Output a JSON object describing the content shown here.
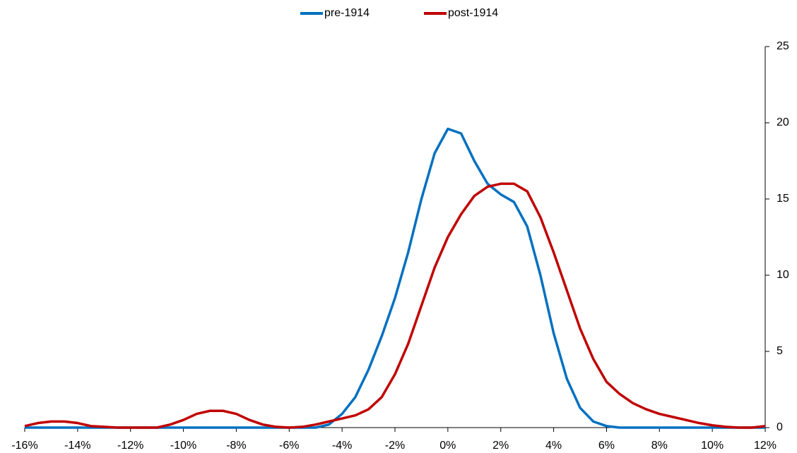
{
  "chart_data": {
    "type": "line",
    "x": [
      -16,
      -15.5,
      -15,
      -14.5,
      -14,
      -13.5,
      -13,
      -12.5,
      -12,
      -11.5,
      -11,
      -10.5,
      -10,
      -9.5,
      -9,
      -8.5,
      -8,
      -7.5,
      -7,
      -6.5,
      -6,
      -5.5,
      -5,
      -4.5,
      -4,
      -3.5,
      -3,
      -2.5,
      -2,
      -1.5,
      -1,
      -0.5,
      0,
      0.5,
      1,
      1.5,
      2,
      2.5,
      3,
      3.5,
      4,
      4.5,
      5,
      5.5,
      6,
      6.5,
      7,
      7.5,
      8,
      8.5,
      9,
      9.5,
      10,
      10.5,
      11,
      11.5,
      12
    ],
    "series": [
      {
        "name": "pre-1914",
        "color": "#0070c0",
        "values": [
          0,
          0,
          0,
          0,
          0,
          0,
          0,
          0,
          0,
          0,
          0,
          0,
          0,
          0,
          0,
          0,
          0,
          0,
          0,
          0,
          0,
          0,
          0,
          0.2,
          0.9,
          2,
          3.8,
          6,
          8.5,
          11.5,
          15,
          18,
          19.6,
          19.3,
          17.5,
          16,
          15.3,
          14.8,
          13.2,
          10,
          6.2,
          3.2,
          1.3,
          0.4,
          0.1,
          0,
          0,
          0,
          0,
          0,
          0,
          0,
          0,
          0,
          0,
          0,
          0
        ]
      },
      {
        "name": "post-1914",
        "color": "#c00000",
        "values": [
          0.1,
          0.3,
          0.4,
          0.4,
          0.3,
          0.1,
          0.05,
          0,
          0,
          0,
          0,
          0.2,
          0.5,
          0.9,
          1.1,
          1.1,
          0.9,
          0.5,
          0.2,
          0.05,
          0,
          0.05,
          0.2,
          0.4,
          0.6,
          0.8,
          1.2,
          2.0,
          3.5,
          5.5,
          8,
          10.5,
          12.5,
          14,
          15.2,
          15.8,
          16,
          16,
          15.5,
          13.8,
          11.5,
          9,
          6.5,
          4.5,
          3,
          2.2,
          1.6,
          1.2,
          0.9,
          0.7,
          0.5,
          0.3,
          0.15,
          0.05,
          0,
          0,
          0.1
        ]
      }
    ],
    "xlim": [
      -16,
      12
    ],
    "xticks": [
      {
        "value": -16,
        "label": "-16%"
      },
      {
        "value": -14,
        "label": "-14%"
      },
      {
        "value": -12,
        "label": "-12%"
      },
      {
        "value": -10,
        "label": "-10%"
      },
      {
        "value": -8,
        "label": "-8%"
      },
      {
        "value": -6,
        "label": "-6%"
      },
      {
        "value": -4,
        "label": "-4%"
      },
      {
        "value": -2,
        "label": "-2%"
      },
      {
        "value": 0,
        "label": "0%"
      },
      {
        "value": 2,
        "label": "2%"
      },
      {
        "value": 4,
        "label": "4%"
      },
      {
        "value": 6,
        "label": "6%"
      },
      {
        "value": 8,
        "label": "8%"
      },
      {
        "value": 10,
        "label": "10%"
      },
      {
        "value": 12,
        "label": "12%"
      }
    ],
    "ylim": [
      0,
      25
    ],
    "yticks": [
      0,
      5,
      10,
      15,
      20,
      25
    ],
    "y_axis_side": "right",
    "legend": "top"
  }
}
